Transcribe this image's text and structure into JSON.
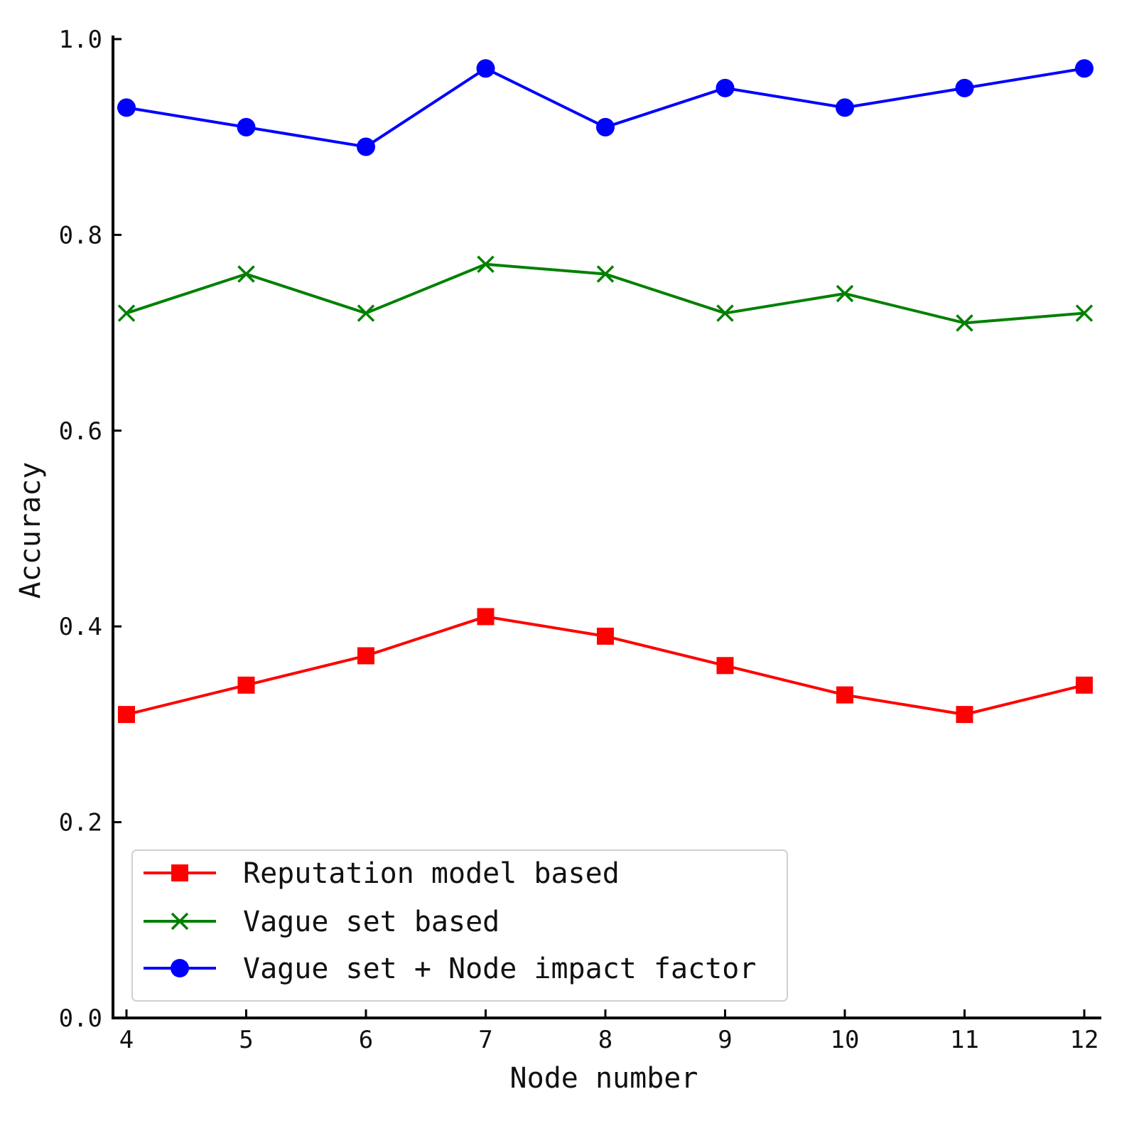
{
  "chart_data": {
    "type": "line",
    "title": "",
    "xlabel": "Node number",
    "ylabel": "Accuracy",
    "x": [
      4,
      5,
      6,
      7,
      8,
      9,
      10,
      11,
      12
    ],
    "xlim": [
      4,
      12
    ],
    "ylim": [
      0.0,
      1.0
    ],
    "x_ticks": [
      "4",
      "5",
      "6",
      "7",
      "8",
      "9",
      "10",
      "11",
      "12"
    ],
    "y_ticks": [
      "0.0",
      "0.2",
      "0.4",
      "0.6",
      "0.8",
      "1.0"
    ],
    "grid": false,
    "legend_position": "bottom-left",
    "series": [
      {
        "name": "Reputation model based",
        "color": "#ff0000",
        "marker": "square",
        "values": [
          0.31,
          0.34,
          0.37,
          0.41,
          0.39,
          0.36,
          0.33,
          0.31,
          0.34
        ]
      },
      {
        "name": "Vague set based",
        "color": "#008000",
        "marker": "x",
        "values": [
          0.72,
          0.76,
          0.72,
          0.77,
          0.76,
          0.72,
          0.74,
          0.71,
          0.72
        ]
      },
      {
        "name": "Vague set + Node impact factor",
        "color": "#0000ff",
        "marker": "circle",
        "values": [
          0.93,
          0.91,
          0.89,
          0.97,
          0.91,
          0.95,
          0.93,
          0.95,
          0.97
        ]
      }
    ]
  }
}
